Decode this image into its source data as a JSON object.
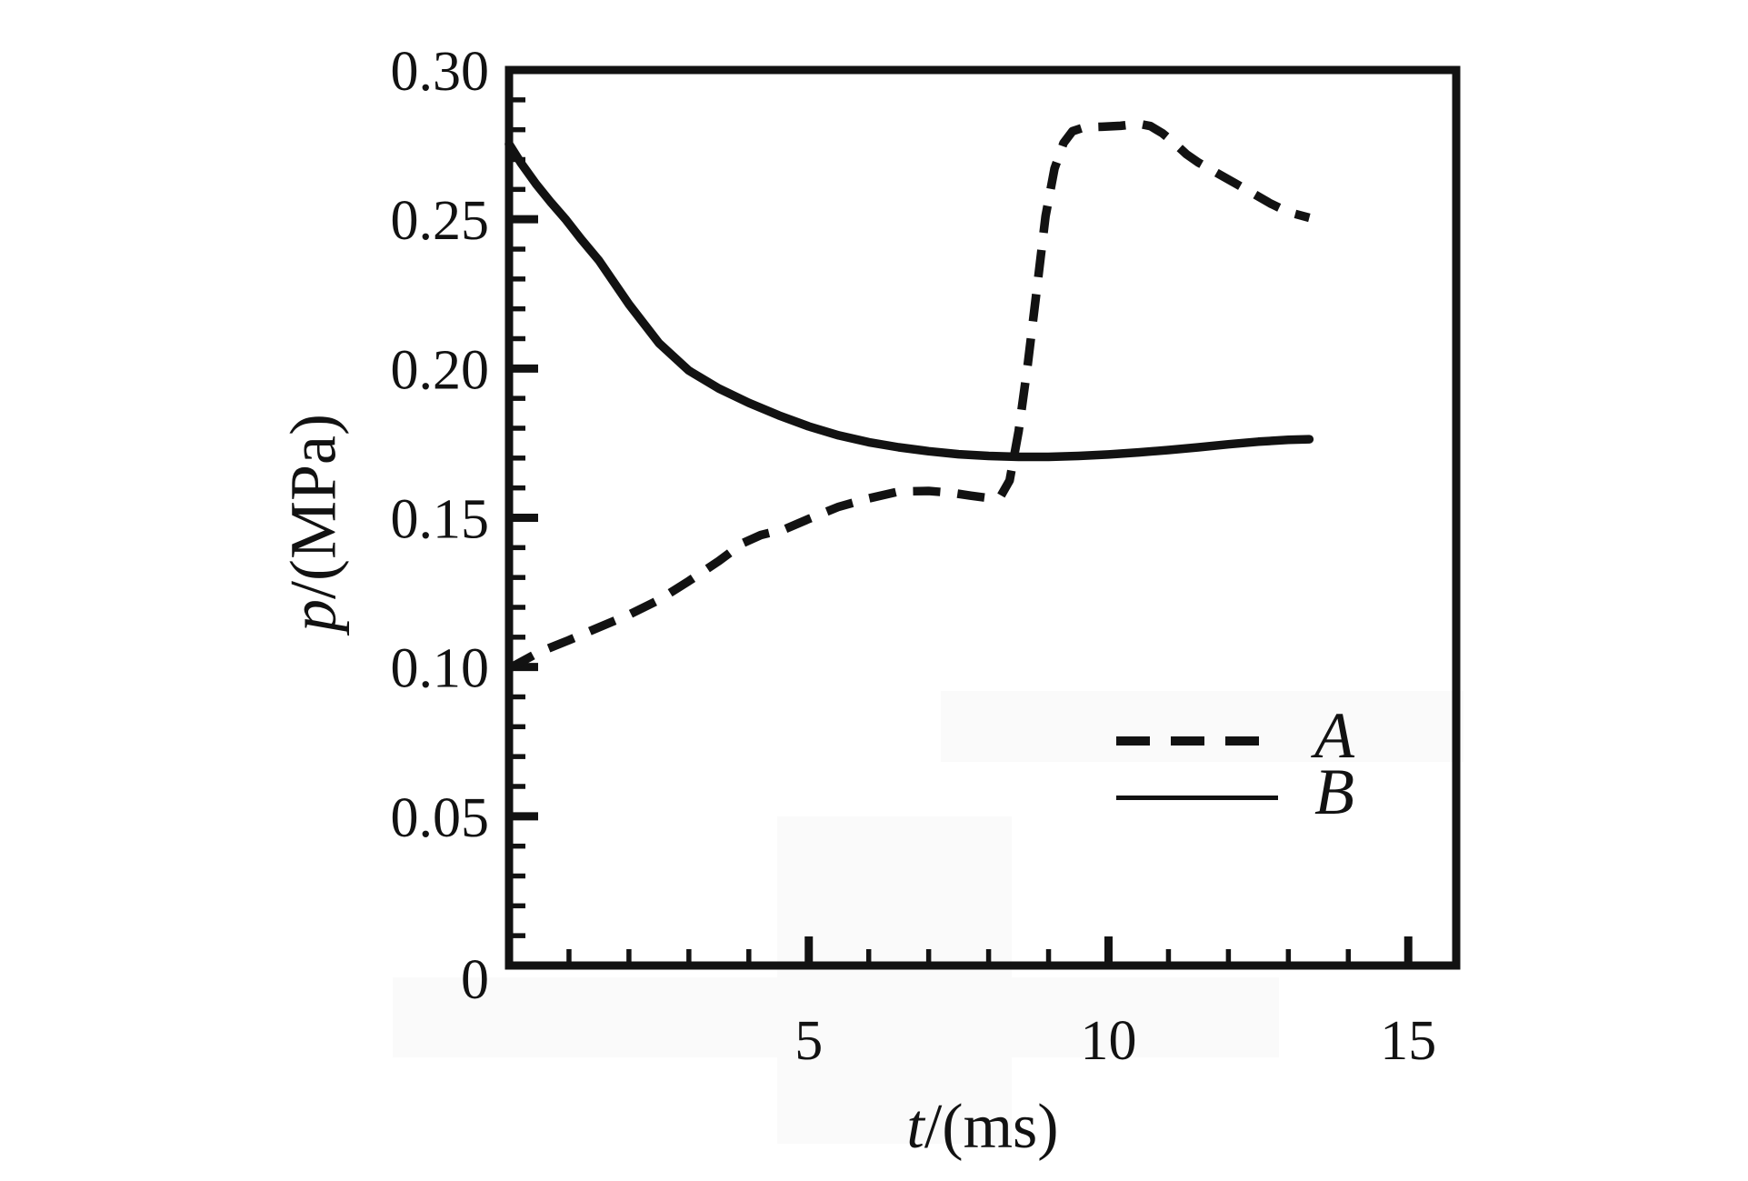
{
  "figure": {
    "background": "#ffffff",
    "ink_color": "#121212"
  },
  "chart_data": {
    "type": "line",
    "title": "",
    "xlabel_symbol": "t",
    "xlabel_rest": "/(ms)",
    "ylabel_symbol": "p",
    "ylabel_rest": "/(MPa)",
    "grid": false,
    "legend_position": "inside-right",
    "axes": {
      "x": {
        "min": 0,
        "max": 15.8,
        "minor_tick_step": 1,
        "major_ticks": [
          {
            "value": 5,
            "label": "5"
          },
          {
            "value": 10,
            "label": "10"
          },
          {
            "value": 15,
            "label": "15"
          }
        ]
      },
      "y": {
        "min": 0,
        "max": 0.3,
        "minor_tick_step": 0.01,
        "major_tick_step": 0.05,
        "major_ticks": [
          {
            "value": 0,
            "label": "0"
          },
          {
            "value": 0.05,
            "label": "0.05"
          },
          {
            "value": 0.1,
            "label": "0.10"
          },
          {
            "value": 0.15,
            "label": "0.15"
          },
          {
            "value": 0.2,
            "label": "0.20"
          },
          {
            "value": 0.25,
            "label": "0.25"
          },
          {
            "value": 0.3,
            "label": "0.30"
          }
        ]
      }
    },
    "series": [
      {
        "name": "A",
        "line_style": "dashed",
        "color": "#121212",
        "points": [
          [
            0,
            0.0995
          ],
          [
            0.5,
            0.105
          ],
          [
            1.0,
            0.109
          ],
          [
            1.5,
            0.1133
          ],
          [
            2.0,
            0.1175
          ],
          [
            2.5,
            0.1225
          ],
          [
            3.0,
            0.1288
          ],
          [
            3.5,
            0.1355
          ],
          [
            3.9,
            0.1415
          ],
          [
            4.2,
            0.1442
          ],
          [
            4.6,
            0.1462
          ],
          [
            5.0,
            0.1496
          ],
          [
            5.5,
            0.1537
          ],
          [
            6.0,
            0.1565
          ],
          [
            6.5,
            0.1588
          ],
          [
            7.0,
            0.159
          ],
          [
            7.4,
            0.1583
          ],
          [
            7.7,
            0.1574
          ],
          [
            8.0,
            0.1566
          ],
          [
            8.2,
            0.1572
          ],
          [
            8.35,
            0.1625
          ],
          [
            8.5,
            0.179
          ],
          [
            8.65,
            0.201
          ],
          [
            8.8,
            0.226
          ],
          [
            8.95,
            0.251
          ],
          [
            9.1,
            0.267
          ],
          [
            9.25,
            0.2755
          ],
          [
            9.4,
            0.2795
          ],
          [
            9.6,
            0.2808
          ],
          [
            9.9,
            0.281
          ],
          [
            10.2,
            0.2813
          ],
          [
            10.5,
            0.282
          ],
          [
            10.7,
            0.2812
          ],
          [
            10.9,
            0.2788
          ],
          [
            11.1,
            0.2755
          ],
          [
            11.3,
            0.2718
          ],
          [
            11.5,
            0.269
          ],
          [
            11.8,
            0.2656
          ],
          [
            12.1,
            0.2622
          ],
          [
            12.4,
            0.2588
          ],
          [
            12.7,
            0.2553
          ],
          [
            13.0,
            0.2524
          ],
          [
            13.35,
            0.2505
          ]
        ]
      },
      {
        "name": "B",
        "line_style": "solid",
        "color": "#121212",
        "points": [
          [
            0,
            0.2752
          ],
          [
            0.2,
            0.2688
          ],
          [
            0.45,
            0.2618
          ],
          [
            0.7,
            0.2556
          ],
          [
            0.95,
            0.2498
          ],
          [
            1.2,
            0.2434
          ],
          [
            1.5,
            0.2362
          ],
          [
            2.0,
            0.2215
          ],
          [
            2.5,
            0.2085
          ],
          [
            3.0,
            0.1993
          ],
          [
            3.5,
            0.1933
          ],
          [
            4.0,
            0.1885
          ],
          [
            4.5,
            0.1843
          ],
          [
            5.0,
            0.1806
          ],
          [
            5.5,
            0.1776
          ],
          [
            6.0,
            0.1753
          ],
          [
            6.5,
            0.1736
          ],
          [
            7.0,
            0.1723
          ],
          [
            7.5,
            0.1713
          ],
          [
            8.0,
            0.1707
          ],
          [
            8.5,
            0.1704
          ],
          [
            9.0,
            0.1704
          ],
          [
            9.5,
            0.1707
          ],
          [
            10.0,
            0.1712
          ],
          [
            10.5,
            0.1719
          ],
          [
            11.0,
            0.1727
          ],
          [
            11.5,
            0.1736
          ],
          [
            12.0,
            0.1746
          ],
          [
            12.5,
            0.1755
          ],
          [
            13.0,
            0.1761
          ],
          [
            13.35,
            0.1763
          ]
        ]
      }
    ]
  }
}
